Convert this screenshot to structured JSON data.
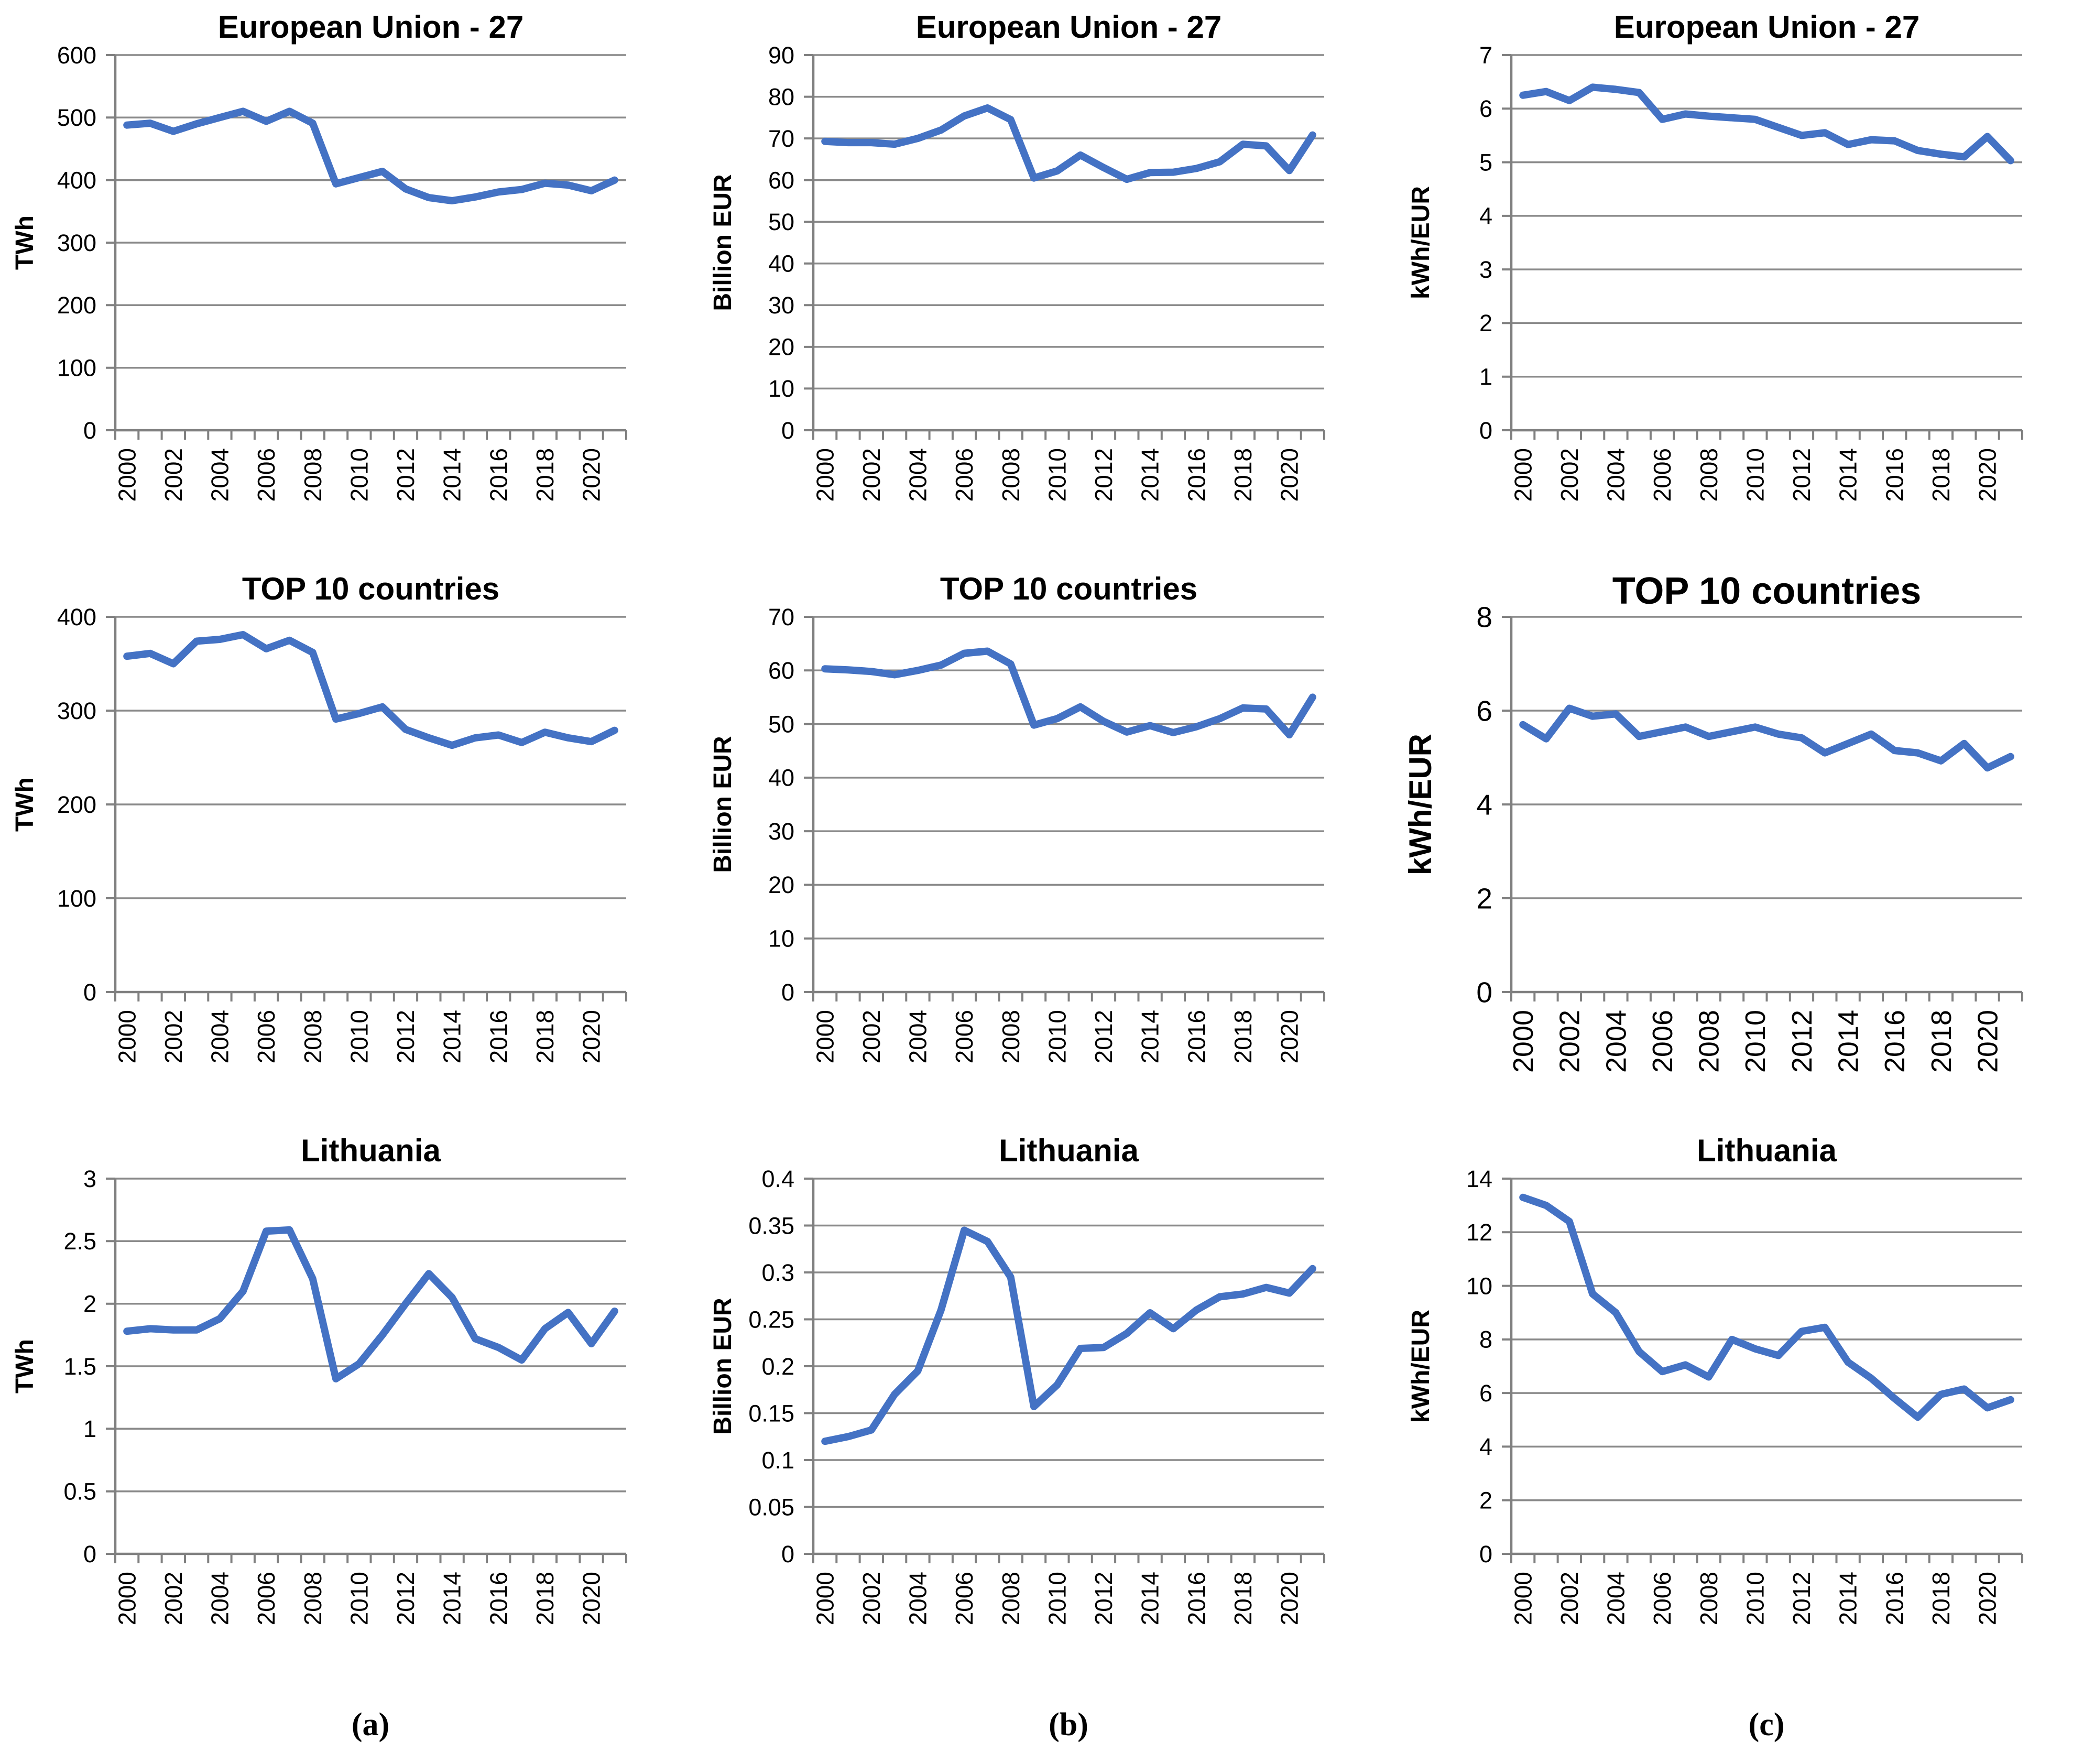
{
  "captions": [
    "(a)",
    "(b)",
    "(c)"
  ],
  "chart_data": {
    "type": "line",
    "grid": true,
    "legend": false,
    "line_color": "#4472C4",
    "grid_color": "#8A8A8A",
    "axis_color": "#808080",
    "text_color": "#000000",
    "x_years": [
      2000,
      2001,
      2002,
      2003,
      2004,
      2005,
      2006,
      2007,
      2008,
      2009,
      2010,
      2011,
      2012,
      2013,
      2014,
      2015,
      2016,
      2017,
      2018,
      2019,
      2020,
      2021
    ],
    "x_tick_labels": [
      "2000",
      "2002",
      "2004",
      "2006",
      "2008",
      "2010",
      "2012",
      "2014",
      "2016",
      "2018",
      "2020"
    ],
    "charts": [
      {
        "title": "European Union - 27",
        "ylabel": "TWh",
        "ylim": [
          0,
          600
        ],
        "ystep": 100,
        "y_tick_labels": [
          "0",
          "100",
          "200",
          "300",
          "400",
          "500",
          "600"
        ],
        "values": [
          488,
          491,
          478,
          490,
          500,
          510,
          494,
          510,
          491,
          394,
          404,
          414,
          386,
          372,
          367,
          373,
          381,
          385,
          395,
          392,
          383,
          400
        ],
        "big_fonts": false
      },
      {
        "title": "European Union - 27",
        "ylabel": "Billion EUR",
        "ylim": [
          0,
          90
        ],
        "ystep": 10,
        "y_tick_labels": [
          "0",
          "10",
          "20",
          "30",
          "40",
          "50",
          "60",
          "70",
          "80",
          "90"
        ],
        "values": [
          69.3,
          69.0,
          69.0,
          68.6,
          70.0,
          72.0,
          75.4,
          77.3,
          74.5,
          60.5,
          62.2,
          66.0,
          63.0,
          60.2,
          61.8,
          61.9,
          62.8,
          64.4,
          68.6,
          68.2,
          62.3,
          70.8
        ],
        "big_fonts": false
      },
      {
        "title": "European Union - 27",
        "ylabel": "kWh/EUR",
        "ylim": [
          0,
          7
        ],
        "ystep": 1,
        "y_tick_labels": [
          "0",
          "1",
          "2",
          "3",
          "4",
          "5",
          "6",
          "7"
        ],
        "values": [
          6.25,
          6.32,
          6.15,
          6.4,
          6.36,
          6.3,
          5.8,
          5.9,
          5.86,
          5.83,
          5.8,
          5.65,
          5.5,
          5.55,
          5.33,
          5.42,
          5.4,
          5.22,
          5.15,
          5.1,
          5.48,
          5.03
        ],
        "big_fonts": false
      },
      {
        "title": "TOP 10 countries",
        "ylabel": "TWh",
        "ylim": [
          0,
          400
        ],
        "ystep": 100,
        "y_tick_labels": [
          "0",
          "100",
          "200",
          "300",
          "400"
        ],
        "values": [
          358,
          361,
          350,
          374,
          376,
          381,
          366,
          375,
          362,
          291,
          297,
          304,
          280,
          271,
          263,
          271,
          274,
          266,
          277,
          271,
          267,
          279
        ],
        "big_fonts": false
      },
      {
        "title": "TOP 10 countries",
        "ylabel": "Billion EUR",
        "ylim": [
          0,
          70
        ],
        "ystep": 10,
        "y_tick_labels": [
          "0",
          "10",
          "20",
          "30",
          "40",
          "50",
          "60",
          "70"
        ],
        "values": [
          60.3,
          60.1,
          59.8,
          59.2,
          60.0,
          61.0,
          63.2,
          63.6,
          61.2,
          49.8,
          51.0,
          53.2,
          50.5,
          48.5,
          49.7,
          48.4,
          49.5,
          51.0,
          53.0,
          52.8,
          48.0,
          55.0
        ],
        "big_fonts": false
      },
      {
        "title": "TOP 10 countries",
        "ylabel": "kWh/EUR",
        "ylim": [
          0,
          8
        ],
        "ystep": 2,
        "y_tick_labels": [
          "0",
          "2",
          "4",
          "6",
          "8"
        ],
        "values": [
          5.7,
          5.4,
          6.05,
          5.88,
          5.93,
          5.45,
          5.55,
          5.65,
          5.45,
          5.55,
          5.65,
          5.5,
          5.42,
          5.1,
          5.3,
          5.5,
          5.15,
          5.1,
          4.93,
          5.3,
          4.78,
          5.02
        ],
        "big_fonts": true
      },
      {
        "title": "Lithuania",
        "ylabel": "TWh",
        "ylim": [
          0,
          3
        ],
        "ystep": 0.5,
        "y_tick_labels": [
          "0",
          "0.5",
          "1",
          "1.5",
          "2",
          "2.5",
          "3"
        ],
        "values": [
          1.78,
          1.8,
          1.79,
          1.79,
          1.88,
          2.1,
          2.58,
          2.59,
          2.2,
          1.4,
          1.52,
          1.75,
          2.0,
          2.24,
          2.05,
          1.72,
          1.65,
          1.55,
          1.8,
          1.93,
          1.68,
          1.94
        ],
        "big_fonts": false
      },
      {
        "title": "Lithuania",
        "ylabel": "Billion EUR",
        "ylim": [
          0,
          0.4
        ],
        "ystep": 0.05,
        "y_tick_labels": [
          "0",
          "0.05",
          "0.1",
          "0.15",
          "0.2",
          "0.25",
          "0.3",
          "0.35",
          "0.4"
        ],
        "values": [
          0.12,
          0.125,
          0.132,
          0.17,
          0.195,
          0.26,
          0.345,
          0.333,
          0.295,
          0.157,
          0.18,
          0.219,
          0.22,
          0.235,
          0.257,
          0.24,
          0.26,
          0.274,
          0.277,
          0.284,
          0.278,
          0.304
        ],
        "big_fonts": false
      },
      {
        "title": "Lithuania",
        "ylabel": "kWh/EUR",
        "ylim": [
          0,
          14
        ],
        "ystep": 2,
        "y_tick_labels": [
          "0",
          "2",
          "4",
          "6",
          "8",
          "10",
          "12",
          "14"
        ],
        "values": [
          13.3,
          13.0,
          12.4,
          9.7,
          9.0,
          7.55,
          6.8,
          7.05,
          6.6,
          8.0,
          7.65,
          7.4,
          8.3,
          8.45,
          7.15,
          6.55,
          5.8,
          5.1,
          5.95,
          6.15,
          5.45,
          5.75
        ],
        "big_fonts": false
      }
    ]
  }
}
